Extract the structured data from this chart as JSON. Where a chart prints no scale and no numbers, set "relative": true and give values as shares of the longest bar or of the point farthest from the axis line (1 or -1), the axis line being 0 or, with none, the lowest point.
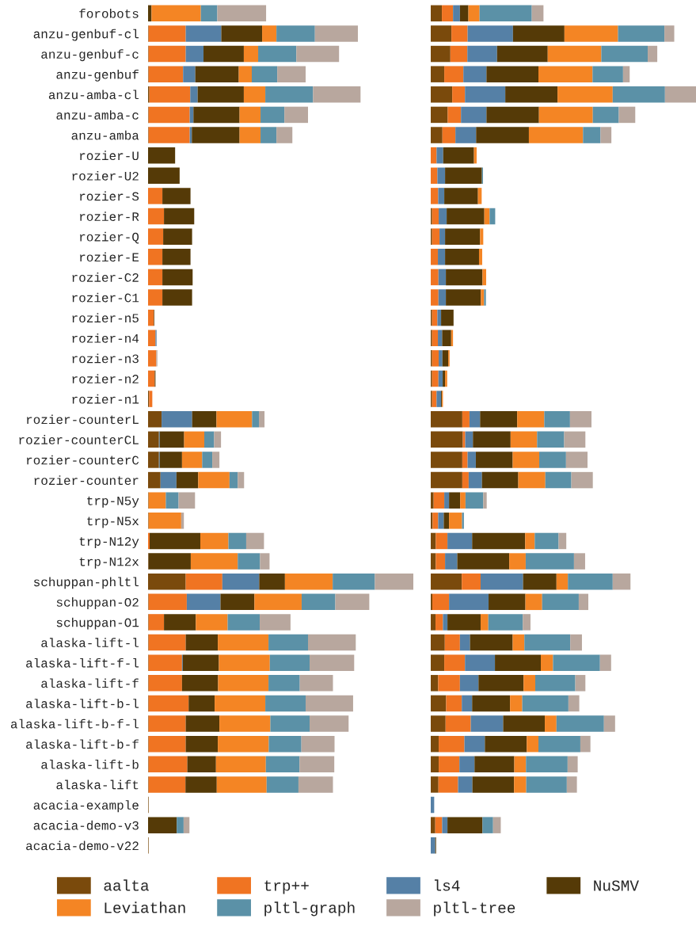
{
  "chart_data": [
    {
      "type": "bar",
      "orientation": "horizontal",
      "stacked": true,
      "relative": true,
      "legend": "bottom",
      "categories": [
        "forobots",
        "anzu-genbuf-cl",
        "anzu-genbuf-c",
        "anzu-genbuf",
        "anzu-amba-cl",
        "anzu-amba-c",
        "anzu-amba",
        "rozier-U",
        "rozier-U2",
        "rozier-S",
        "rozier-R",
        "rozier-Q",
        "rozier-E",
        "rozier-C2",
        "rozier-C1",
        "rozier-n5",
        "rozier-n4",
        "rozier-n3",
        "rozier-n2",
        "rozier-n1",
        "rozier-counterL",
        "rozier-counterCL",
        "rozier-counterC",
        "rozier-counter",
        "trp-N5y",
        "trp-N5x",
        "trp-N12y",
        "trp-N12x",
        "schuppan-phltl",
        "schuppan-O2",
        "schuppan-O1",
        "alaska-lift-l",
        "alaska-lift-f-l",
        "alaska-lift-f",
        "alaska-lift-b-l",
        "alaska-lift-b-f-l",
        "alaska-lift-b-f",
        "alaska-lift-b",
        "alaska-lift",
        "acacia-example",
        "acacia-demo-v3",
        "acacia-demo-v22"
      ],
      "series": [
        {
          "name": "aalta",
          "color": "#7a4a0c",
          "values": [
            0,
            0.002,
            0.002,
            0.002,
            0.005,
            0.002,
            0.002,
            0,
            0,
            0,
            0,
            0,
            0,
            0,
            0,
            0,
            0,
            0,
            0,
            0.004,
            0.051,
            0.041,
            0.041,
            0.047,
            0.002,
            0.002,
            0,
            0.002,
            0.142,
            0.002,
            0.002,
            0.002,
            0.002,
            0.002,
            0.002,
            0.002,
            0.002,
            0.002,
            0.002,
            0.002,
            0,
            0.002
          ]
        },
        {
          "name": "trp++",
          "color": "#f07422",
          "values": [
            0,
            0.14,
            0.14,
            0.13,
            0.154,
            0.155,
            0.155,
            0,
            0,
            0.054,
            0.06,
            0.057,
            0.054,
            0.054,
            0.054,
            0.022,
            0.028,
            0.031,
            0.025,
            0.012,
            0,
            0,
            0,
            0,
            0,
            0,
            0.006,
            0,
            0.138,
            0.144,
            0.058,
            0.14,
            0.126,
            0.126,
            0.151,
            0.14,
            0.14,
            0.146,
            0.139,
            0,
            0,
            0
          ]
        },
        {
          "name": "ls4",
          "color": "#5580a6",
          "values": [
            0,
            0.134,
            0.067,
            0.046,
            0.028,
            0.014,
            0.008,
            0,
            0,
            0,
            0,
            0,
            0,
            0,
            0,
            0,
            0.004,
            0,
            0,
            0,
            0.115,
            0.003,
            0.003,
            0.06,
            0,
            0,
            0,
            0,
            0.139,
            0.127,
            0,
            0,
            0.003,
            0,
            0,
            0,
            0,
            0,
            0,
            0,
            0,
            0
          ]
        },
        {
          "name": "NuSMV",
          "color": "#553a07",
          "values": [
            0.013,
            0.154,
            0.152,
            0.164,
            0.174,
            0.174,
            0.18,
            0.102,
            0.119,
            0.106,
            0.114,
            0.109,
            0.106,
            0.114,
            0.112,
            0.002,
            0,
            0,
            0.003,
            0,
            0.092,
            0.092,
            0.084,
            0.082,
            0,
            0,
            0.191,
            0.159,
            0.097,
            0.128,
            0.12,
            0.121,
            0.136,
            0.136,
            0.098,
            0.127,
            0.121,
            0.108,
            0.118,
            0,
            0.108,
            0
          ]
        },
        {
          "name": "Leviathan",
          "color": "#f48524",
          "values": [
            0.186,
            0.054,
            0.054,
            0.049,
            0.081,
            0.079,
            0.079,
            0,
            0,
            0,
            0,
            0,
            0,
            0,
            0,
            0,
            0,
            0,
            0,
            0,
            0.134,
            0.076,
            0.076,
            0.118,
            0.065,
            0.123,
            0.106,
            0.177,
            0.18,
            0.178,
            0.12,
            0.191,
            0.192,
            0.19,
            0.191,
            0.192,
            0.192,
            0.188,
            0.188,
            0,
            0,
            0
          ]
        },
        {
          "name": "pltl-graph",
          "color": "#5b91a7",
          "values": [
            0.062,
            0.145,
            0.144,
            0.096,
            0.18,
            0.09,
            0.06,
            0,
            0,
            0,
            0,
            0,
            0,
            0,
            0,
            0,
            0,
            0,
            0,
            0,
            0.026,
            0.037,
            0.038,
            0.031,
            0.048,
            0,
            0.067,
            0.084,
            0.159,
            0.127,
            0.121,
            0.149,
            0.15,
            0.118,
            0.152,
            0.148,
            0.123,
            0.127,
            0.12,
            0,
            0.026,
            0
          ]
        },
        {
          "name": "pltl-tree",
          "color": "#b8a79e",
          "values": [
            0.184,
            0.162,
            0.161,
            0.107,
            0.179,
            0.089,
            0.06,
            0,
            0,
            0,
            0,
            0,
            0,
            0,
            0,
            0,
            0,
            0.004,
            0,
            0,
            0.021,
            0.026,
            0.027,
            0.024,
            0.062,
            0.01,
            0.067,
            0.036,
            0.145,
            0.128,
            0.116,
            0.18,
            0.168,
            0.125,
            0.179,
            0.147,
            0.125,
            0.131,
            0.13,
            0,
            0.022,
            0
          ]
        }
      ]
    },
    {
      "type": "bar",
      "orientation": "horizontal",
      "stacked": true,
      "relative": true,
      "categories": [
        null,
        null,
        null,
        null,
        null,
        null,
        null,
        null,
        null,
        null,
        null,
        null,
        null,
        null,
        null,
        null,
        null,
        null,
        null,
        null,
        null,
        null,
        null,
        null,
        null,
        null,
        null,
        null,
        null,
        null,
        null,
        null,
        null,
        null,
        null,
        null,
        null,
        null,
        null,
        null,
        null,
        null
      ],
      "series": [
        {
          "color": "#7a4a0c",
          "values": [
            0.042,
            0.078,
            0.074,
            0.051,
            0.081,
            0.064,
            0.044,
            0,
            0,
            0,
            0.005,
            0.005,
            0,
            0,
            0,
            0.005,
            0.005,
            0.005,
            0.005,
            0.005,
            0.119,
            0.121,
            0.119,
            0.119,
            0.011,
            0.007,
            0.019,
            0.019,
            0.117,
            0.006,
            0.018,
            0.053,
            0.051,
            0.028,
            0.058,
            0.056,
            0.03,
            0.03,
            0.029,
            0,
            0.017,
            0
          ]
        },
        {
          "color": "#f07422",
          "values": [
            0.042,
            0.061,
            0.064,
            0.072,
            0.048,
            0.05,
            0.049,
            0.022,
            0.025,
            0.028,
            0.025,
            0.028,
            0.027,
            0.029,
            0.029,
            0.02,
            0.022,
            0.025,
            0.024,
            0.017,
            0.027,
            0.009,
            0.02,
            0.024,
            0.04,
            0.021,
            0.044,
            0.035,
            0.071,
            0.063,
            0.028,
            0.057,
            0.078,
            0.082,
            0.059,
            0.095,
            0.097,
            0.078,
            0.074,
            0,
            0.026,
            0
          ]
        },
        {
          "color": "#5580a6",
          "values": [
            0.026,
            0.171,
            0.112,
            0.087,
            0.152,
            0.096,
            0.078,
            0.025,
            0.029,
            0.023,
            0.03,
            0.021,
            0.027,
            0.028,
            0.028,
            0.014,
            0.016,
            0.014,
            0.016,
            0.017,
            0.04,
            0.029,
            0.031,
            0.05,
            0.018,
            0.021,
            0.093,
            0.046,
            0.16,
            0.149,
            0.017,
            0.038,
            0.113,
            0.07,
            0.039,
            0.122,
            0.077,
            0.057,
            0.054,
            0.013,
            0.02,
            0.017
          ]
        },
        {
          "color": "#553a07",
          "values": [
            0.032,
            0.194,
            0.191,
            0.196,
            0.197,
            0.198,
            0.199,
            0.116,
            0.139,
            0.127,
            0.142,
            0.132,
            0.128,
            0.138,
            0.132,
            0.047,
            0.034,
            0.022,
            0.009,
            0.003,
            0.14,
            0.142,
            0.139,
            0.137,
            0.042,
            0.02,
            0.2,
            0.196,
            0.126,
            0.139,
            0.125,
            0.161,
            0.173,
            0.17,
            0.143,
            0.157,
            0.158,
            0.15,
            0.157,
            0,
            0.132,
            0.003
          ]
        },
        {
          "color": "#f48524",
          "values": [
            0.042,
            0.202,
            0.202,
            0.204,
            0.208,
            0.203,
            0.204,
            0.01,
            0,
            0.014,
            0.02,
            0.012,
            0.012,
            0.014,
            0.012,
            0,
            0.007,
            0.005,
            0.008,
            0.004,
            0.102,
            0.1,
            0.1,
            0.102,
            0.02,
            0.049,
            0.036,
            0.062,
            0.043,
            0.063,
            0.029,
            0.044,
            0.046,
            0.044,
            0.046,
            0.044,
            0.044,
            0.044,
            0.046,
            0,
            0,
            0
          ]
        },
        {
          "color": "#5b91a7",
          "values": [
            0.197,
            0.175,
            0.175,
            0.115,
            0.197,
            0.098,
            0.066,
            0,
            0.004,
            0,
            0.021,
            0,
            0,
            0,
            0.007,
            0,
            0,
            0,
            0,
            0,
            0.097,
            0.102,
            0.101,
            0.098,
            0.067,
            0.007,
            0.09,
            0.182,
            0.169,
            0.138,
            0.13,
            0.173,
            0.177,
            0.151,
            0.174,
            0.179,
            0.158,
            0.157,
            0.153,
            0,
            0.04,
            0
          ]
        },
        {
          "color": "#b8a79e",
          "values": [
            0.044,
            0.037,
            0.036,
            0.025,
            0.117,
            0.062,
            0.041,
            0,
            0,
            0,
            0,
            0,
            0,
            0,
            0,
            0,
            0,
            0,
            0,
            0,
            0.081,
            0.08,
            0.081,
            0.081,
            0.013,
            0,
            0.029,
            0.042,
            0.067,
            0.036,
            0.029,
            0.044,
            0.042,
            0.038,
            0.041,
            0.042,
            0.038,
            0.038,
            0.038,
            0,
            0.029,
            0
          ]
        }
      ]
    }
  ]
}
